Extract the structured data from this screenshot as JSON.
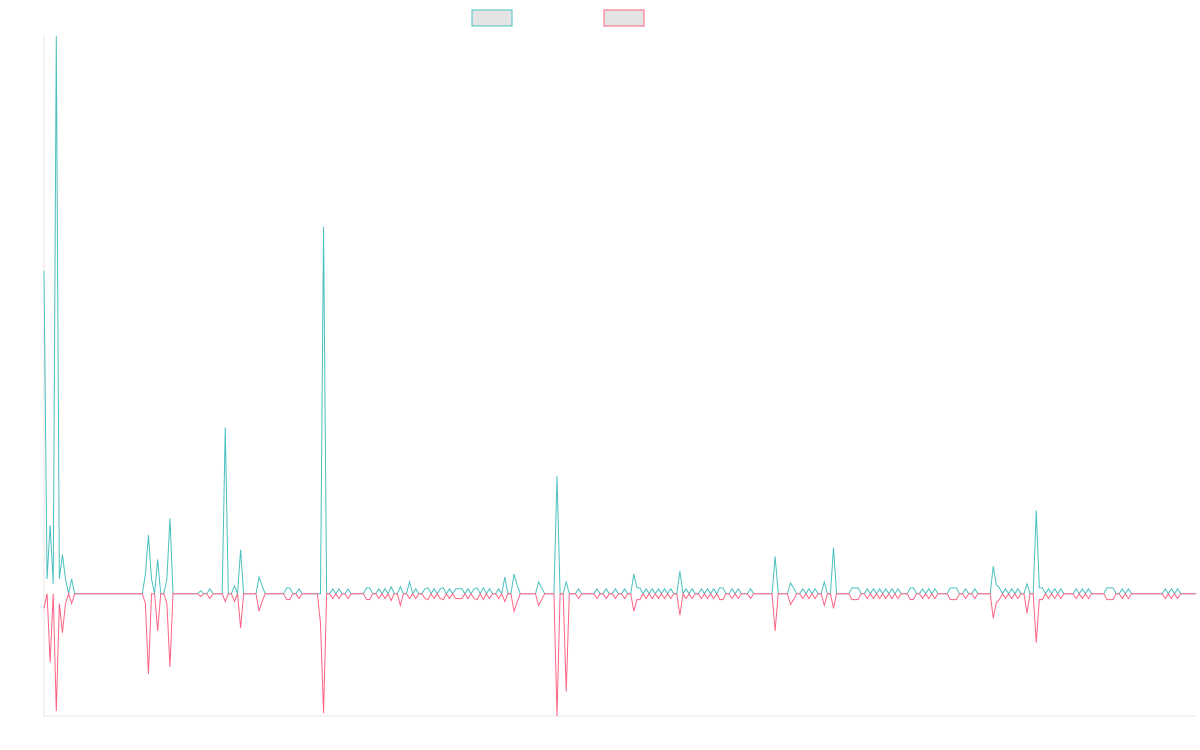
{
  "chart_data": {
    "type": "line",
    "title": "",
    "xlabel": "",
    "ylabel": "",
    "grid": false,
    "legend_position": "top-center",
    "ylim": [
      -125,
      570
    ],
    "series": [
      {
        "name": "",
        "color": "#4bc0c0",
        "fill": "#e4e4e4",
        "values": [
          330,
          15,
          70,
          10,
          570,
          15,
          40,
          15,
          0,
          15,
          0,
          0,
          0,
          0,
          0,
          0,
          0,
          0,
          0,
          0,
          0,
          0,
          0,
          0,
          0,
          0,
          0,
          0,
          0,
          0,
          0,
          0,
          0,
          20,
          60,
          15,
          0,
          35,
          0,
          0,
          15,
          77,
          0,
          0,
          0,
          0,
          0,
          0,
          0,
          0,
          0,
          3,
          0,
          0,
          5,
          0,
          0,
          0,
          0,
          170,
          0,
          0,
          8,
          0,
          45,
          0,
          0,
          0,
          0,
          0,
          17,
          8,
          0,
          0,
          0,
          0,
          0,
          0,
          0,
          6,
          6,
          0,
          0,
          5,
          0,
          0,
          0,
          0,
          0,
          0,
          0,
          375,
          0,
          0,
          5,
          0,
          5,
          0,
          0,
          5,
          0,
          0,
          0,
          0,
          0,
          6,
          6,
          0,
          0,
          5,
          0,
          5,
          0,
          7,
          0,
          0,
          7,
          0,
          0,
          12,
          0,
          5,
          0,
          0,
          5,
          6,
          0,
          5,
          0,
          5,
          6,
          0,
          5,
          0,
          5,
          5,
          5,
          0,
          5,
          0,
          5,
          6,
          0,
          6,
          0,
          5,
          0,
          0,
          5,
          0,
          17,
          0,
          0,
          20,
          9,
          0,
          0,
          0,
          0,
          0,
          0,
          12,
          6,
          0,
          0,
          0,
          0,
          120,
          0,
          0,
          12,
          0,
          0,
          0,
          5,
          0,
          0,
          0,
          0,
          0,
          5,
          0,
          0,
          5,
          0,
          0,
          5,
          0,
          0,
          5,
          0,
          0,
          20,
          6,
          6,
          0,
          5,
          0,
          5,
          0,
          5,
          0,
          5,
          0,
          5,
          0,
          0,
          23,
          0,
          5,
          0,
          5,
          0,
          0,
          5,
          0,
          5,
          0,
          5,
          0,
          6,
          6,
          0,
          0,
          5,
          0,
          5,
          0,
          0,
          0,
          5,
          0,
          0,
          0,
          0,
          0,
          0,
          0,
          38,
          0,
          0,
          0,
          0,
          11,
          6,
          0,
          0,
          5,
          0,
          5,
          0,
          5,
          0,
          0,
          12,
          0,
          0,
          47,
          0,
          0,
          0,
          0,
          0,
          6,
          6,
          6,
          0,
          0,
          5,
          0,
          5,
          0,
          5,
          0,
          5,
          0,
          5,
          0,
          5,
          0,
          0,
          0,
          6,
          6,
          0,
          0,
          5,
          0,
          5,
          0,
          5,
          0,
          0,
          0,
          0,
          6,
          6,
          6,
          0,
          0,
          5,
          0,
          0,
          5,
          0,
          0,
          0,
          0,
          0,
          28,
          9,
          6,
          0,
          5,
          0,
          5,
          0,
          5,
          0,
          0,
          10,
          0,
          0,
          85,
          6,
          6,
          0,
          5,
          0,
          5,
          0,
          5,
          0,
          0,
          0,
          0,
          5,
          0,
          5,
          0,
          5,
          0,
          0,
          0,
          0,
          0,
          6,
          6,
          6,
          0,
          0,
          5,
          0,
          5,
          0,
          0,
          0,
          0,
          0,
          0,
          0,
          0,
          0,
          0,
          0,
          5,
          0,
          5,
          0,
          5,
          0,
          0,
          0,
          0,
          0,
          0
        ]
      },
      {
        "name": "",
        "color": "#ff6384",
        "fill": "#e4e4e4",
        "values": [
          -15,
          0,
          -70,
          0,
          -120,
          -10,
          -40,
          -10,
          0,
          -10,
          0,
          0,
          0,
          0,
          0,
          0,
          0,
          0,
          0,
          0,
          0,
          0,
          0,
          0,
          0,
          0,
          0,
          0,
          0,
          0,
          0,
          0,
          0,
          -10,
          -82,
          0,
          0,
          -38,
          0,
          0,
          -10,
          -75,
          0,
          0,
          0,
          0,
          0,
          0,
          0,
          0,
          0,
          -3,
          0,
          0,
          -5,
          0,
          0,
          0,
          0,
          -8,
          0,
          0,
          -8,
          0,
          -35,
          0,
          0,
          0,
          0,
          0,
          -18,
          -8,
          0,
          0,
          0,
          0,
          0,
          0,
          0,
          -6,
          -6,
          0,
          0,
          -5,
          0,
          0,
          0,
          0,
          0,
          0,
          -30,
          -122,
          0,
          0,
          -5,
          0,
          -5,
          0,
          0,
          -5,
          0,
          0,
          0,
          0,
          0,
          -6,
          -6,
          0,
          0,
          -5,
          0,
          -5,
          0,
          -7,
          0,
          0,
          -12,
          0,
          0,
          -5,
          0,
          -5,
          0,
          0,
          -5,
          -6,
          0,
          -5,
          0,
          -5,
          -6,
          0,
          -5,
          0,
          -5,
          -5,
          -5,
          0,
          -5,
          0,
          -5,
          -6,
          0,
          -6,
          0,
          -5,
          0,
          0,
          -5,
          0,
          -8,
          0,
          0,
          -18,
          -9,
          0,
          0,
          0,
          0,
          0,
          0,
          -12,
          -6,
          0,
          0,
          0,
          0,
          -125,
          0,
          0,
          -100,
          0,
          0,
          0,
          -5,
          0,
          0,
          0,
          0,
          0,
          -5,
          0,
          0,
          -5,
          0,
          0,
          -5,
          0,
          0,
          -5,
          0,
          0,
          -18,
          -6,
          -6,
          0,
          -5,
          0,
          -5,
          0,
          -5,
          0,
          -5,
          0,
          -5,
          0,
          0,
          -22,
          0,
          -5,
          0,
          -5,
          0,
          0,
          -5,
          0,
          -5,
          0,
          -5,
          0,
          -6,
          -6,
          0,
          0,
          -5,
          0,
          -5,
          0,
          0,
          0,
          -5,
          0,
          0,
          0,
          0,
          0,
          0,
          0,
          -38,
          0,
          0,
          0,
          0,
          -11,
          -6,
          0,
          0,
          -5,
          0,
          -5,
          0,
          -5,
          0,
          0,
          -12,
          0,
          0,
          -15,
          0,
          0,
          0,
          0,
          0,
          -6,
          -6,
          -6,
          0,
          0,
          -5,
          0,
          -5,
          0,
          -5,
          0,
          -5,
          0,
          -5,
          0,
          -5,
          0,
          0,
          0,
          -6,
          -6,
          0,
          0,
          -5,
          0,
          -5,
          0,
          -5,
          0,
          0,
          0,
          0,
          -6,
          -6,
          -6,
          0,
          0,
          -5,
          0,
          0,
          -5,
          0,
          0,
          0,
          0,
          0,
          -25,
          -9,
          -6,
          0,
          -5,
          0,
          -5,
          0,
          -5,
          0,
          0,
          -20,
          0,
          0,
          -50,
          -6,
          -6,
          0,
          -5,
          0,
          -5,
          0,
          -5,
          0,
          0,
          0,
          0,
          -5,
          0,
          -5,
          0,
          -5,
          0,
          0,
          0,
          0,
          0,
          -6,
          -6,
          -6,
          0,
          0,
          -5,
          0,
          -5,
          0,
          0,
          0,
          0,
          0,
          0,
          0,
          0,
          0,
          0,
          0,
          -5,
          0,
          -5,
          0,
          -5,
          0,
          0,
          0,
          0,
          0,
          0
        ]
      }
    ]
  }
}
